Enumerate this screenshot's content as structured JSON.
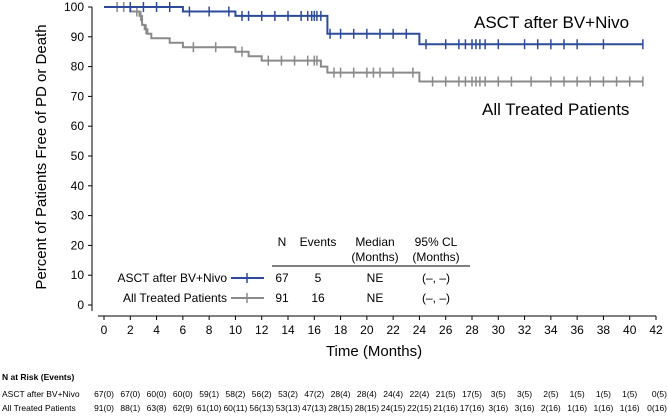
{
  "chart_data": {
    "type": "line",
    "subtype": "kaplan-meier",
    "title": "",
    "xlabel": "Time (Months)",
    "ylabel": "Percent of Patients Free of PD or Death",
    "xlim": [
      0,
      42
    ],
    "ylim": [
      0,
      100
    ],
    "xticks": [
      0,
      2,
      4,
      6,
      8,
      10,
      12,
      14,
      16,
      18,
      20,
      22,
      24,
      26,
      28,
      30,
      32,
      34,
      36,
      38,
      40,
      42
    ],
    "yticks": [
      0,
      10,
      20,
      30,
      40,
      50,
      60,
      70,
      80,
      90,
      100
    ],
    "grid": false,
    "series": [
      {
        "name": "ASCT after BV+Nivo",
        "color": "#2e4b9b",
        "steps": [
          [
            0,
            100
          ],
          [
            6,
            100
          ],
          [
            6,
            98.5
          ],
          [
            10,
            98.5
          ],
          [
            10,
            97
          ],
          [
            17,
            97
          ],
          [
            17,
            91
          ],
          [
            24,
            91
          ],
          [
            24,
            87.5
          ],
          [
            41,
            87.5
          ]
        ],
        "censors": [
          2,
          3,
          4,
          5,
          6.5,
          8,
          9.5,
          10.5,
          11,
          12,
          13,
          14,
          15,
          15.5,
          15.8,
          16,
          16.2,
          16.5,
          17.2,
          18,
          19,
          20,
          21,
          22,
          23,
          24.5,
          26,
          27,
          27.5,
          28,
          28.3,
          28.6,
          29,
          30,
          32,
          33,
          34,
          35,
          36,
          38,
          41
        ]
      },
      {
        "name": "All Treated Patients",
        "color": "#8a8a8a",
        "steps": [
          [
            0,
            100
          ],
          [
            2,
            100
          ],
          [
            2,
            98.5
          ],
          [
            2.7,
            98.5
          ],
          [
            2.7,
            97
          ],
          [
            2.9,
            97
          ],
          [
            2.9,
            94
          ],
          [
            3.1,
            94
          ],
          [
            3.1,
            92.5
          ],
          [
            3.3,
            92.5
          ],
          [
            3.3,
            91
          ],
          [
            3.6,
            91
          ],
          [
            3.6,
            89.5
          ],
          [
            5,
            89.5
          ],
          [
            5,
            88
          ],
          [
            6,
            88
          ],
          [
            6,
            86.5
          ],
          [
            10,
            86.5
          ],
          [
            10,
            85
          ],
          [
            11,
            85
          ],
          [
            11,
            83.5
          ],
          [
            12,
            83.5
          ],
          [
            12,
            82
          ],
          [
            16.5,
            82
          ],
          [
            16.5,
            80
          ],
          [
            17,
            80
          ],
          [
            17,
            78
          ],
          [
            24,
            78
          ],
          [
            24,
            75
          ],
          [
            41,
            75
          ]
        ],
        "censors": [
          1,
          1.5,
          2.5,
          2.8,
          3.2,
          6.8,
          8.5,
          10.5,
          12.5,
          13.5,
          14.5,
          15.5,
          16,
          16.2,
          17.5,
          18,
          19,
          20,
          20.5,
          21,
          22,
          23.5,
          25,
          26,
          27,
          27.5,
          28,
          28.3,
          28.6,
          29,
          30,
          31,
          32.5,
          34,
          35,
          36,
          37,
          38,
          39,
          40,
          41
        ]
      }
    ],
    "annotations": [
      "ASCT after BV+Nivo",
      "All Treated Patients"
    ],
    "summary_table": {
      "headers": [
        "N",
        "Events",
        "Median (Months)",
        "95% CL (Months)"
      ],
      "rows": [
        {
          "label": "ASCT after BV+Nivo",
          "n": "67",
          "events": "5",
          "median": "NE",
          "ci": "(–, –)"
        },
        {
          "label": "All Treated Patients",
          "n": "91",
          "events": "16",
          "median": "NE",
          "ci": "(–, –)"
        }
      ]
    },
    "at_risk": {
      "title": "N at Risk (Events)",
      "rows": [
        {
          "label": "ASCT after BV+Nivo",
          "values": [
            "67(0)",
            "67(0)",
            "60(0)",
            "60(0)",
            "59(1)",
            "58(2)",
            "56(2)",
            "53(2)",
            "47(2)",
            "28(4)",
            "28(4)",
            "24(4)",
            "22(4)",
            "21(5)",
            "17(5)",
            "3(5)",
            "3(5)",
            "2(5)",
            "1(5)",
            "1(5)",
            "1(5)",
            "0(5)"
          ]
        },
        {
          "label": "All Treated Patients",
          "values": [
            "91(0)",
            "88(1)",
            "63(8)",
            "62(9)",
            "61(10)",
            "60(11)",
            "56(13)",
            "53(13)",
            "47(13)",
            "28(15)",
            "28(15)",
            "24(15)",
            "22(15)",
            "21(16)",
            "17(16)",
            "3(16)",
            "3(16)",
            "2(16)",
            "1(16)",
            "1(16)",
            "1(16)",
            "0(16)"
          ]
        }
      ]
    }
  }
}
